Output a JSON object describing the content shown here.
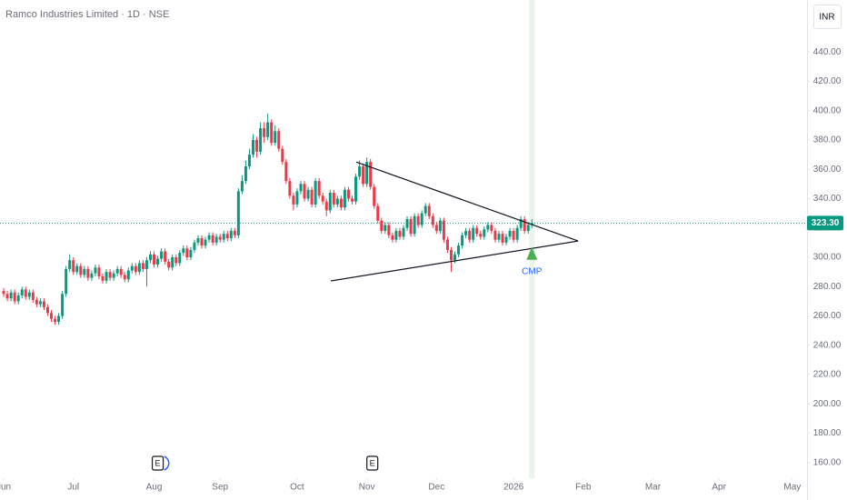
{
  "chart_data": {
    "type": "candlestick",
    "title": "Ramco Industries Limited · 1D · NSE",
    "currency": "INR",
    "up_color": "#089981",
    "down_color": "#f23645",
    "xlim": [
      0,
      220
    ],
    "ylim": [
      150,
      450
    ],
    "yticks": [
      {
        "value": 160,
        "label": "160.00"
      },
      {
        "value": 180,
        "label": "180.00"
      },
      {
        "value": 200,
        "label": "200.00"
      },
      {
        "value": 220,
        "label": "220.00"
      },
      {
        "value": 240,
        "label": "240.00"
      },
      {
        "value": 260,
        "label": "260.00"
      },
      {
        "value": 280,
        "label": "280.00"
      },
      {
        "value": 300,
        "label": "300.00"
      },
      {
        "value": 320,
        "label": "320.00"
      },
      {
        "value": 340,
        "label": "340.00"
      },
      {
        "value": 360,
        "label": "360.00"
      },
      {
        "value": 380,
        "label": "380.00"
      },
      {
        "value": 400,
        "label": "400.00"
      },
      {
        "value": 420,
        "label": "420.00"
      },
      {
        "value": 440,
        "label": "440.00"
      }
    ],
    "xticks": [
      {
        "value": 1,
        "label": "Jun"
      },
      {
        "value": 20,
        "label": "Jul"
      },
      {
        "value": 42,
        "label": "Aug"
      },
      {
        "value": 60,
        "label": "Sep"
      },
      {
        "value": 81,
        "label": "Oct"
      },
      {
        "value": 100,
        "label": "Nov"
      },
      {
        "value": 119,
        "label": "Dec"
      },
      {
        "value": 140,
        "label": "2026"
      },
      {
        "value": 159,
        "label": "Feb"
      },
      {
        "value": 178,
        "label": "Mar"
      },
      {
        "value": 196,
        "label": "Apr"
      },
      {
        "value": 216,
        "label": "May"
      }
    ],
    "x": [
      1,
      2,
      3,
      4,
      5,
      6,
      7,
      8,
      9,
      10,
      11,
      12,
      13,
      14,
      15,
      16,
      17,
      18,
      19,
      20,
      21,
      22,
      23,
      24,
      25,
      26,
      27,
      28,
      29,
      30,
      31,
      32,
      33,
      34,
      35,
      36,
      37,
      38,
      39,
      40,
      41,
      42,
      43,
      44,
      45,
      46,
      47,
      48,
      49,
      50,
      51,
      52,
      53,
      54,
      55,
      56,
      57,
      58,
      59,
      60,
      61,
      62,
      63,
      64,
      65,
      66,
      67,
      68,
      69,
      70,
      71,
      72,
      73,
      74,
      75,
      76,
      77,
      78,
      79,
      80,
      81,
      82,
      83,
      84,
      85,
      86,
      87,
      88,
      89,
      90,
      91,
      92,
      93,
      94,
      95,
      96,
      97,
      98,
      99,
      100,
      101,
      102,
      103,
      104,
      105,
      106,
      107,
      108,
      109,
      110,
      111,
      112,
      113,
      114,
      115,
      116,
      117,
      118,
      119,
      120,
      121,
      122,
      123,
      124,
      125,
      126,
      127,
      128,
      129,
      130,
      131,
      132,
      133,
      134,
      135,
      136,
      137,
      138,
      139,
      140,
      141,
      142,
      143,
      144,
      145
    ],
    "open": [
      277,
      275,
      272,
      276,
      270,
      274,
      278,
      273,
      276,
      271,
      268,
      270,
      266,
      262,
      258,
      256,
      260,
      275,
      292,
      298,
      290,
      294,
      288,
      292,
      286,
      289,
      293,
      287,
      284,
      290,
      286,
      289,
      292,
      288,
      285,
      291,
      294,
      290,
      296,
      292,
      298,
      302,
      295,
      299,
      304,
      297,
      293,
      300,
      296,
      303,
      306,
      300,
      305,
      310,
      313,
      308,
      312,
      315,
      310,
      314,
      312,
      316,
      313,
      318,
      315,
      345,
      352,
      362,
      370,
      380,
      372,
      388,
      382,
      392,
      378,
      386,
      374,
      365,
      352,
      342,
      336,
      345,
      350,
      340,
      346,
      336,
      352,
      342,
      338,
      332,
      344,
      336,
      340,
      334,
      346,
      340,
      338,
      355,
      362,
      350,
      365,
      348,
      335,
      325,
      318,
      322,
      315,
      312,
      318,
      314,
      320,
      326,
      316,
      328,
      322,
      330,
      335,
      328,
      322,
      318,
      325,
      312,
      305,
      298,
      302,
      308,
      315,
      318,
      312,
      320,
      316,
      314,
      319,
      322,
      318,
      312,
      316,
      310,
      314,
      318,
      312,
      320,
      326,
      318,
      322
    ],
    "high": [
      279,
      277,
      278,
      278,
      276,
      280,
      280,
      278,
      278,
      273,
      272,
      272,
      268,
      264,
      260,
      262,
      277,
      294,
      302,
      300,
      296,
      296,
      294,
      294,
      291,
      295,
      295,
      289,
      292,
      292,
      291,
      294,
      294,
      290,
      293,
      296,
      296,
      298,
      298,
      300,
      304,
      304,
      301,
      306,
      306,
      299,
      302,
      302,
      305,
      308,
      308,
      307,
      312,
      315,
      315,
      314,
      317,
      317,
      316,
      316,
      318,
      318,
      320,
      320,
      347,
      356,
      366,
      374,
      384,
      382,
      392,
      392,
      398,
      394,
      390,
      388,
      376,
      367,
      354,
      344,
      347,
      352,
      352,
      348,
      348,
      354,
      354,
      344,
      340,
      346,
      346,
      342,
      342,
      348,
      348,
      342,
      357,
      366,
      364,
      368,
      367,
      350,
      337,
      327,
      324,
      324,
      317,
      320,
      320,
      322,
      328,
      328,
      330,
      330,
      332,
      337,
      337,
      330,
      324,
      327,
      327,
      314,
      307,
      304,
      310,
      317,
      320,
      320,
      322,
      322,
      318,
      321,
      324,
      324,
      320,
      318,
      318,
      316,
      320,
      320,
      322,
      328,
      328,
      324,
      326
    ],
    "low": [
      273,
      270,
      270,
      268,
      268,
      272,
      271,
      271,
      269,
      266,
      266,
      264,
      260,
      256,
      254,
      254,
      258,
      273,
      290,
      288,
      288,
      286,
      286,
      284,
      284,
      287,
      285,
      282,
      282,
      284,
      284,
      287,
      286,
      283,
      283,
      289,
      288,
      288,
      290,
      280,
      296,
      293,
      293,
      297,
      295,
      291,
      291,
      294,
      294,
      301,
      298,
      298,
      303,
      308,
      306,
      306,
      310,
      308,
      308,
      310,
      310,
      311,
      311,
      313,
      313,
      343,
      350,
      360,
      368,
      368,
      370,
      378,
      380,
      376,
      376,
      372,
      363,
      350,
      340,
      332,
      334,
      343,
      338,
      338,
      334,
      334,
      340,
      336,
      328,
      330,
      334,
      334,
      332,
      332,
      338,
      336,
      336,
      353,
      348,
      348,
      346,
      333,
      323,
      316,
      316,
      313,
      310,
      310,
      312,
      312,
      318,
      314,
      314,
      320,
      320,
      328,
      326,
      320,
      316,
      316,
      310,
      303,
      290,
      296,
      300,
      306,
      313,
      310,
      310,
      314,
      312,
      312,
      317,
      316,
      310,
      310,
      308,
      308,
      312,
      310,
      310,
      318,
      316,
      316,
      320
    ],
    "close": [
      275,
      272,
      276,
      270,
      274,
      278,
      273,
      276,
      271,
      268,
      270,
      266,
      262,
      258,
      256,
      260,
      275,
      292,
      298,
      290,
      294,
      288,
      292,
      286,
      289,
      293,
      287,
      284,
      290,
      286,
      289,
      292,
      288,
      285,
      291,
      294,
      290,
      296,
      292,
      298,
      302,
      295,
      299,
      304,
      297,
      293,
      300,
      296,
      303,
      306,
      300,
      305,
      310,
      313,
      308,
      312,
      315,
      310,
      314,
      312,
      316,
      313,
      318,
      315,
      345,
      352,
      362,
      370,
      380,
      372,
      388,
      382,
      392,
      378,
      386,
      374,
      365,
      352,
      342,
      336,
      345,
      350,
      340,
      346,
      336,
      352,
      342,
      338,
      332,
      344,
      336,
      340,
      334,
      346,
      340,
      338,
      355,
      362,
      350,
      365,
      348,
      335,
      325,
      318,
      322,
      315,
      312,
      318,
      314,
      320,
      326,
      316,
      328,
      322,
      330,
      335,
      328,
      322,
      318,
      325,
      312,
      305,
      298,
      302,
      308,
      315,
      318,
      312,
      320,
      316,
      314,
      319,
      322,
      318,
      312,
      316,
      310,
      314,
      318,
      312,
      320,
      326,
      318,
      322,
      323.3
    ],
    "last_price": {
      "value": 323.3,
      "label": "323.30"
    },
    "trendlines": [
      {
        "color": "#131722",
        "x": [
          97.1,
          157.6
        ],
        "y": [
          365.0,
          311.1
        ]
      },
      {
        "color": "#131722",
        "x": [
          90.2,
          157.6
        ],
        "y": [
          283.9,
          311.1
        ]
      }
    ],
    "marker": {
      "x": 145,
      "y": 302,
      "label": "CMP",
      "color": "#4caf50"
    },
    "earnings": [
      {
        "x": 43,
        "label": "E"
      },
      {
        "x": 101.5,
        "label": "E"
      }
    ]
  }
}
